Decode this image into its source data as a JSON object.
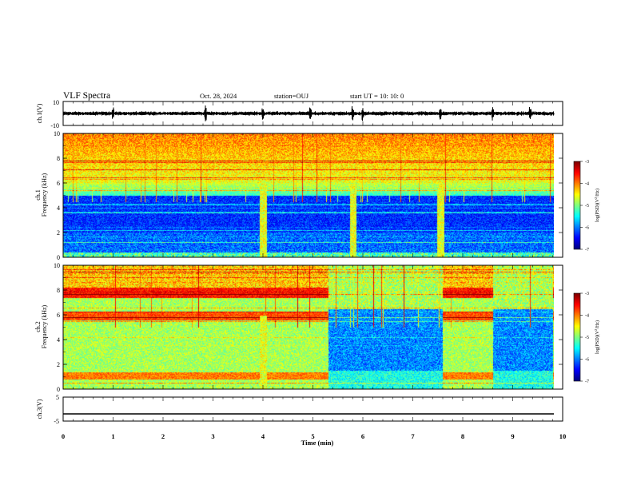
{
  "header": {
    "title": "VLF Spectra",
    "date": "Oct. 28, 2024",
    "station": "station=OUJ",
    "start": "start  UT  =   10: 10: 0"
  },
  "chart_data": [
    {
      "type": "line",
      "id": "ch1_waveform",
      "ylabel": "ch.1(V)",
      "ylim": [
        -10,
        10
      ],
      "yticks": [
        "10",
        "-10"
      ],
      "xlim": [
        0,
        10
      ],
      "baseline": 0,
      "spikes_min": [
        1.0,
        2.85,
        4.0,
        4.95,
        5.8,
        6.0,
        7.55,
        8.6,
        9.35
      ]
    },
    {
      "type": "heatmap",
      "id": "ch1_spectrogram",
      "ylabel": "ch.1\nFrequency (kHz)",
      "ylim": [
        0,
        10
      ],
      "yticks": [
        0,
        2,
        4,
        6,
        8,
        10
      ],
      "xlim": [
        0,
        10
      ],
      "bursts_min": [
        4.0,
        5.8,
        7.55
      ],
      "colorbar": {
        "label": "log(PSD)(V²/Hz)",
        "min": -7,
        "max": -3,
        "ticks": [
          "-3",
          "-4",
          "-5",
          "-6",
          "-7"
        ]
      }
    },
    {
      "type": "heatmap",
      "id": "ch2_spectrogram",
      "ylabel": "ch.2\nFrequency (kHz)",
      "ylim": [
        0,
        10
      ],
      "yticks": [
        0,
        2,
        4,
        6,
        8,
        10
      ],
      "xlim": [
        0,
        10
      ],
      "low_intervals_min": [
        [
          5.3,
          7.6
        ],
        [
          8.6,
          9.8
        ]
      ],
      "bursts_min": [
        4.0
      ],
      "colorbar": {
        "label": "log(PSD)(V²/Hz)",
        "min": -7,
        "max": -3,
        "ticks": [
          "-3",
          "-4",
          "-5",
          "-6",
          "-7"
        ]
      }
    },
    {
      "type": "line",
      "id": "ch3_waveform",
      "ylabel": "ch.3(V)",
      "ylim": [
        -5,
        5
      ],
      "yticks": [
        "5",
        "-5"
      ],
      "xlim": [
        0,
        10
      ],
      "value": -2
    }
  ],
  "xaxis": {
    "label": "Time  (min)",
    "ticks": [
      "0",
      "1",
      "2",
      "3",
      "4",
      "5",
      "6",
      "7",
      "8",
      "9",
      "10"
    ]
  }
}
